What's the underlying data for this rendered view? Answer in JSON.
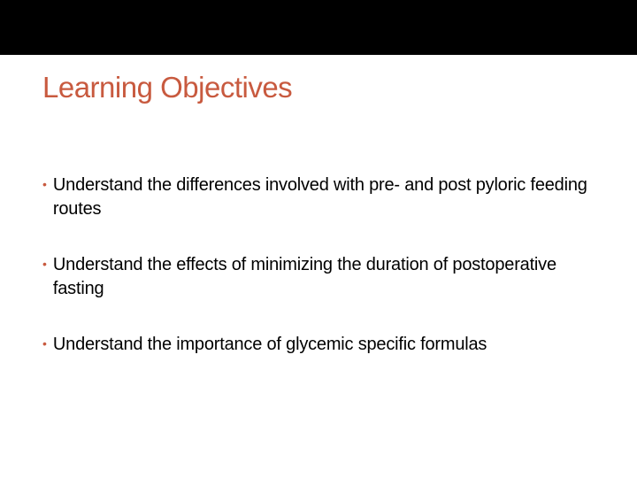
{
  "slide": {
    "title": "Learning Objectives",
    "title_color": "#c85a3f",
    "title_fontsize": 33,
    "title_fontweight": 400,
    "top_bar_color": "#000000",
    "top_bar_height": 62,
    "background_color": "#ffffff",
    "bullet_color": "#c85a3f",
    "body_text_color": "#000000",
    "body_fontsize": 20,
    "bullets": [
      "Understand the differences involved with pre- and post pyloric feeding routes",
      "Understand the effects of minimizing the duration of postoperative fasting",
      "Understand the importance of glycemic specific formulas"
    ]
  }
}
